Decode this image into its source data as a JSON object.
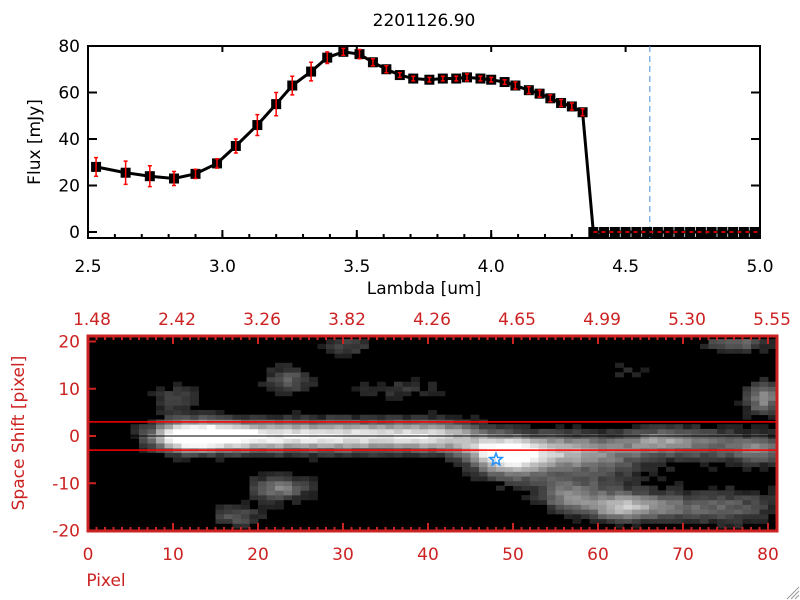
{
  "chart_data": [
    {
      "type": "line",
      "title": "2201126.90",
      "xlabel": "Lambda [um]",
      "ylabel": "Flux [mJy]",
      "xlim": [
        2.5,
        5.0
      ],
      "ylim": [
        0,
        80
      ],
      "xticks": [
        "2.5",
        "3.0",
        "3.5",
        "4.0",
        "4.5",
        "5.0"
      ],
      "xtick_values": [
        2.5,
        3.0,
        3.5,
        4.0,
        4.5,
        5.0
      ],
      "yticks": [
        "0",
        "20",
        "40",
        "60",
        "80"
      ],
      "ytick_values": [
        0,
        20,
        40,
        60,
        80
      ],
      "series": [
        {
          "name": "flux",
          "x": [
            2.53,
            2.64,
            2.73,
            2.82,
            2.9,
            2.98,
            3.05,
            3.13,
            3.2,
            3.26,
            3.33,
            3.39,
            3.45,
            3.51,
            3.56,
            3.61,
            3.66,
            3.71,
            3.77,
            3.82,
            3.87,
            3.91,
            3.96,
            4.0,
            4.05,
            4.09,
            4.14,
            4.18,
            4.22,
            4.26,
            4.3,
            4.34,
            4.38,
            4.42,
            4.46,
            4.5,
            4.54,
            4.58,
            4.62,
            4.66,
            4.7,
            4.74,
            4.78,
            4.82,
            4.86,
            4.9,
            4.94,
            4.98
          ],
          "y": [
            28,
            25.5,
            24,
            23,
            25,
            29.5,
            37,
            46,
            55,
            63,
            69,
            75,
            77.5,
            76.5,
            73,
            70,
            67.5,
            66,
            65.5,
            66,
            66,
            66.5,
            66,
            65.5,
            64.5,
            63,
            61,
            59.5,
            57.5,
            55.5,
            54,
            51.5,
            0,
            0,
            0,
            0,
            0,
            0,
            0,
            0,
            0,
            0,
            0,
            0,
            0,
            0,
            0,
            0
          ],
          "err": [
            4,
            5,
            4.5,
            3,
            2,
            2,
            3,
            4.5,
            5,
            4,
            4,
            2.5,
            1.5,
            2,
            1.5,
            1.5,
            1,
            1,
            1,
            1,
            1,
            1.5,
            1,
            1,
            1,
            1.5,
            1.5,
            1.5,
            1.5,
            1.5,
            1.5,
            1.5,
            0,
            0,
            0,
            0,
            0,
            0,
            0,
            0,
            0,
            0,
            0,
            0,
            0,
            0,
            0,
            0
          ]
        }
      ],
      "zero_line": 0,
      "marker_line_x": 4.59,
      "colors": {
        "line": "#000000",
        "error": "#ff0000",
        "zero": "#ff0000",
        "marker": "#4a90d9"
      }
    },
    {
      "type": "heatmap",
      "xlabel": "Pixel",
      "ylabel": "Space Shift [pixel]",
      "xlim": [
        0,
        81
      ],
      "ylim": [
        -21,
        21
      ],
      "xticks": [
        "0",
        "10",
        "20",
        "30",
        "40",
        "50",
        "60",
        "70",
        "80"
      ],
      "xtick_values": [
        0,
        10,
        20,
        30,
        40,
        50,
        60,
        70,
        80
      ],
      "yticks": [
        "20",
        "10",
        "0",
        "-10",
        "-20"
      ],
      "ytick_values": [
        20,
        10,
        0,
        -10,
        -20
      ],
      "top_ticks": [
        "1.48",
        "2.42",
        "3.26",
        "3.82",
        "4.26",
        "4.65",
        "4.99",
        "5.30",
        "5.55"
      ],
      "aperture": [
        -3,
        3
      ],
      "center": 0,
      "star": {
        "pixel": 48,
        "shift": -5
      },
      "sources": [
        [
          11,
          0,
          1.0,
          3,
          2.2
        ],
        [
          16,
          0,
          0.8,
          4,
          2.2
        ],
        [
          24,
          0,
          0.72,
          5,
          2.2
        ],
        [
          33,
          0,
          0.7,
          5,
          2.2
        ],
        [
          41,
          0,
          0.68,
          4,
          2.2
        ],
        [
          48,
          -3,
          0.72,
          3,
          2.2
        ],
        [
          53,
          -3,
          0.55,
          4,
          2.6
        ],
        [
          60,
          -3,
          0.42,
          4,
          2.6
        ],
        [
          67,
          -1,
          0.5,
          3,
          2
        ],
        [
          74,
          -2,
          0.38,
          4,
          2.6
        ],
        [
          79,
          -3,
          0.35,
          2,
          2
        ],
        [
          49,
          -6,
          0.4,
          3,
          2.5
        ],
        [
          58,
          -9,
          0.25,
          6,
          3
        ],
        [
          56,
          -13,
          0.4,
          2.5,
          2
        ],
        [
          62,
          -15,
          0.62,
          3,
          2
        ],
        [
          68,
          -15,
          0.35,
          4,
          2
        ],
        [
          76,
          -15,
          0.3,
          4,
          3
        ],
        [
          22,
          -11,
          0.5,
          2.5,
          2
        ],
        [
          17,
          -17,
          0.35,
          2,
          1.6
        ],
        [
          23,
          12,
          0.38,
          2,
          2
        ],
        [
          30,
          19,
          0.28,
          2,
          1.4
        ],
        [
          36,
          10,
          0.2,
          4,
          1.5
        ],
        [
          10,
          8,
          0.28,
          2,
          2
        ],
        [
          79,
          8,
          0.55,
          1.5,
          2.5
        ],
        [
          76,
          20,
          0.42,
          3,
          1.5
        ],
        [
          63,
          14,
          0.16,
          2,
          1.5
        ]
      ],
      "colors": {
        "axis": "#cc2222",
        "aperture": "#ff0000",
        "center": "#000000",
        "star": "#1e90ff"
      }
    }
  ]
}
